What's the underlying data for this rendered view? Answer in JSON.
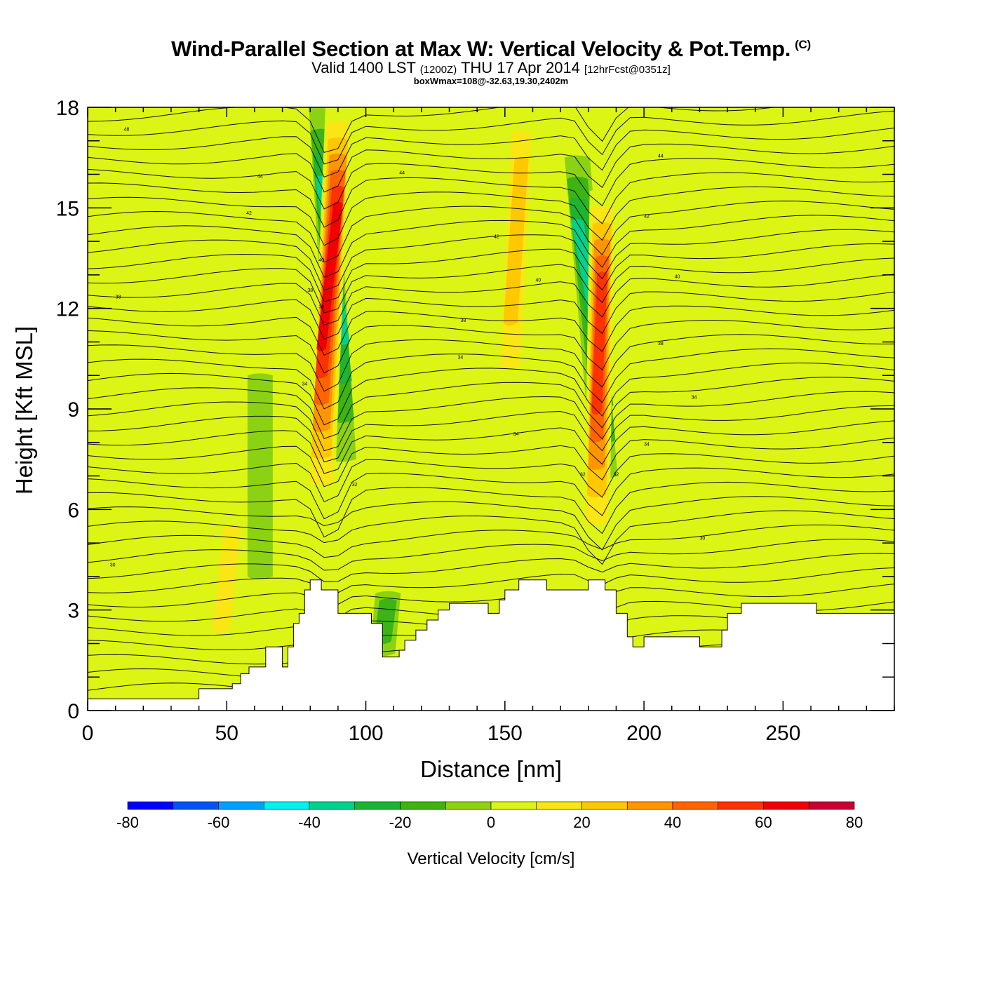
{
  "header": {
    "title_main": "Wind-Parallel Section at Max W: Vertical Velocity & Pot.Temp.",
    "title_mark": "(C)",
    "valid_prefix": "Valid 1400 LST",
    "valid_utc": "(1200Z)",
    "valid_date": "THU 17 Apr 2014",
    "fcst": "[12hrFcst@0351z]",
    "box_wmax": "boxWmax=108@-32.63,19.30,2402m"
  },
  "chart_data": {
    "type": "heatmap",
    "xlabel": "Distance [nm]",
    "ylabel": "Height [Kft MSL]",
    "xlim": [
      0,
      290
    ],
    "ylim": [
      0,
      18
    ],
    "x_ticks": [
      0,
      50,
      100,
      150,
      200,
      250
    ],
    "y_ticks": [
      0,
      3,
      6,
      9,
      12,
      15,
      18
    ],
    "background_value": 5,
    "updraft_bands": [
      {
        "x_bottom": 84,
        "x_top": 90,
        "y_bottom": 6.0,
        "y_top": 18,
        "peak": 65
      },
      {
        "x_bottom": 183,
        "x_top": 185,
        "y_bottom": 4.8,
        "y_top": 15.5,
        "peak": 60
      },
      {
        "x_bottom": 152,
        "x_top": 156,
        "y_bottom": 9.0,
        "y_top": 18,
        "peak": 30
      },
      {
        "x_bottom": 48,
        "x_top": 52,
        "y_bottom": 1.5,
        "y_top": 6.0,
        "peak": 15
      }
    ],
    "downdraft_bands": [
      {
        "x_bottom": 92,
        "x_top": 84,
        "y_bottom": 7.5,
        "y_top": 18,
        "peak": -40
      },
      {
        "x_bottom": 186,
        "x_top": 176,
        "y_bottom": 7.0,
        "y_top": 16.5,
        "peak": -40
      },
      {
        "x_bottom": 106,
        "x_top": 108,
        "y_bottom": 1.7,
        "y_top": 3.5,
        "peak": -20
      },
      {
        "x_bottom": 62,
        "x_top": 62,
        "y_bottom": 4.0,
        "y_top": 10.0,
        "peak": -15
      }
    ],
    "terrain": {
      "x": [
        0,
        38,
        40,
        50,
        52,
        55,
        58,
        62,
        64,
        68,
        70,
        72,
        74,
        76,
        78,
        80,
        82,
        84,
        88,
        90,
        92,
        100,
        102,
        106,
        108,
        112,
        114,
        118,
        122,
        126,
        130,
        140,
        144,
        148,
        150,
        155,
        160,
        165,
        170,
        175,
        180,
        186,
        190,
        194,
        196,
        200,
        205,
        210,
        215,
        220,
        224,
        228,
        230,
        235,
        245,
        255,
        262,
        270,
        290
      ],
      "y": [
        0.35,
        0.35,
        0.65,
        0.65,
        0.8,
        1.1,
        1.3,
        1.3,
        1.9,
        1.9,
        1.3,
        1.9,
        2.6,
        2.9,
        3.6,
        3.9,
        3.9,
        3.6,
        3.6,
        2.9,
        2.9,
        2.9,
        2.6,
        1.6,
        1.6,
        1.8,
        2.1,
        2.4,
        2.7,
        3.0,
        3.2,
        3.2,
        2.9,
        3.3,
        3.6,
        3.9,
        3.9,
        3.6,
        3.6,
        3.6,
        3.9,
        3.6,
        2.9,
        2.2,
        1.9,
        2.2,
        2.2,
        2.2,
        2.2,
        1.9,
        1.9,
        2.4,
        2.9,
        3.2,
        3.2,
        3.2,
        2.9,
        2.9,
        2.9
      ]
    },
    "pot_temp_contours": [
      {
        "label": "48",
        "x": 14,
        "y": 17.3
      },
      {
        "label": "44",
        "x": 62,
        "y": 15.9
      },
      {
        "label": "44",
        "x": 113,
        "y": 16.0
      },
      {
        "label": "44",
        "x": 206,
        "y": 16.5
      },
      {
        "label": "42",
        "x": 58,
        "y": 14.8
      },
      {
        "label": "42",
        "x": 147,
        "y": 14.1
      },
      {
        "label": "42",
        "x": 201,
        "y": 14.7
      },
      {
        "label": "40",
        "x": 84,
        "y": 13.4
      },
      {
        "label": "40",
        "x": 162,
        "y": 12.8
      },
      {
        "label": "40",
        "x": 212,
        "y": 12.9
      },
      {
        "label": "38",
        "x": 11,
        "y": 12.3
      },
      {
        "label": "38",
        "x": 80,
        "y": 12.5
      },
      {
        "label": "38",
        "x": 84,
        "y": 12.0
      },
      {
        "label": "38",
        "x": 135,
        "y": 11.6
      },
      {
        "label": "38",
        "x": 206,
        "y": 10.9
      },
      {
        "label": "34",
        "x": 134,
        "y": 10.5
      },
      {
        "label": "34",
        "x": 78,
        "y": 9.7
      },
      {
        "label": "34",
        "x": 218,
        "y": 9.3
      },
      {
        "label": "34",
        "x": 154,
        "y": 8.2
      },
      {
        "label": "34",
        "x": 201,
        "y": 7.9
      },
      {
        "label": "32",
        "x": 178,
        "y": 7.0
      },
      {
        "label": "32",
        "x": 190,
        "y": 7.0
      },
      {
        "label": "32",
        "x": 96,
        "y": 6.7
      },
      {
        "label": "30",
        "x": 221,
        "y": 5.1
      },
      {
        "label": "30",
        "x": 9,
        "y": 4.3
      }
    ]
  },
  "colorbar": {
    "title": "Vertical Velocity [cm/s]",
    "ticks": [
      "-80",
      "-60",
      "-40",
      "-20",
      "0",
      "20",
      "40",
      "60",
      "80"
    ],
    "bounds": [
      -80,
      80
    ],
    "colors": [
      "#0000ff",
      "#0055ee",
      "#00a0ff",
      "#00f2f2",
      "#00d28c",
      "#1eb432",
      "#3cb414",
      "#8cd214",
      "#dcf514",
      "#fae614",
      "#ffc800",
      "#ff9600",
      "#ff6400",
      "#ff3200",
      "#f00000",
      "#c80032"
    ]
  }
}
